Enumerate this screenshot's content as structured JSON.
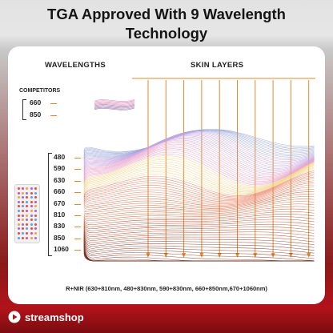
{
  "title_line1": "TGA Approved With 9 Wavelength",
  "title_line2": "Technology",
  "headers": {
    "wavelengths": "WAVELENGTHS",
    "skin_layers": "SKIN LAYERS"
  },
  "competitors": {
    "label": "COMPETITORS",
    "wavelengths": [
      "660",
      "850"
    ]
  },
  "product_wavelengths": [
    "480",
    "590",
    "630",
    "660",
    "670",
    "810",
    "830",
    "850",
    "1060"
  ],
  "footnote": "R+NIR (630+810nm, 480+830nm, 590+830nm, 660+850nm,670+1060nm)",
  "brand": {
    "name": "streamshop",
    "icon": "play-badge-icon"
  },
  "colors": {
    "accent_orange": "#e28a2a",
    "wave_palette": [
      "#9aa7d8",
      "#c7a3e0",
      "#e7a0c8",
      "#f2d28a",
      "#e8795a",
      "#d4643c",
      "#b94a2e",
      "#8c3a28",
      "#6e3322"
    ],
    "frame_red": "#b1131a"
  }
}
